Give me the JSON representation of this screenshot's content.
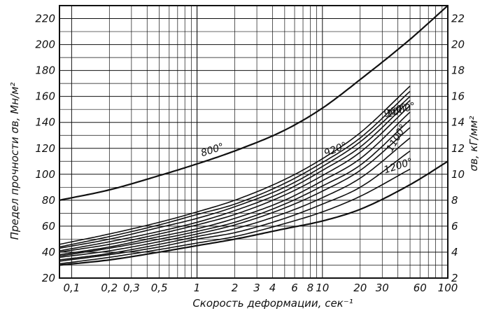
{
  "chart_data": {
    "type": "line",
    "title": "",
    "xlabel": "Скорость деформации, сек⁻¹",
    "ylabel": "Предел прочности σв, Мн/м²",
    "y2label": "σв, кГ/мм²",
    "x_scale": "log",
    "xlim": [
      0.08,
      100
    ],
    "ylim": [
      20,
      230
    ],
    "y2lim": [
      2,
      23
    ],
    "grid": true,
    "x_tick_labels": [
      "0,1",
      "0,2",
      "0,3",
      "0,5",
      "1",
      "2",
      "3",
      "4",
      "6",
      "8",
      "10",
      "20",
      "30",
      "60",
      "100"
    ],
    "x_ticks": [
      0.1,
      0.2,
      0.3,
      0.5,
      1,
      2,
      3,
      4,
      6,
      8,
      10,
      20,
      30,
      60,
      100
    ],
    "y_tick_labels": [
      "20",
      "40",
      "60",
      "80",
      "100",
      "120",
      "140",
      "160",
      "180",
      "200",
      "220"
    ],
    "y_ticks": [
      20,
      40,
      60,
      80,
      100,
      120,
      140,
      160,
      180,
      200,
      220
    ],
    "y2_tick_labels": [
      "2",
      "4",
      "6",
      "8",
      "10",
      "12",
      "14",
      "16",
      "18",
      "20",
      "22"
    ],
    "y2_ticks": [
      2,
      4,
      6,
      8,
      10,
      12,
      14,
      16,
      18,
      20,
      22
    ],
    "series": [
      {
        "name": "800°",
        "x": [
          0.08,
          0.2,
          0.5,
          1,
          2,
          5,
          10,
          20,
          50,
          100
        ],
        "y": [
          80,
          88,
          99,
          108,
          118,
          134,
          151,
          173,
          204,
          230
        ]
      },
      {
        "name": "",
        "x": [
          0.08,
          0.2,
          0.5,
          1,
          2,
          5,
          10,
          20,
          50
        ],
        "y": [
          46,
          54,
          63,
          71,
          80,
          96,
          112,
          132,
          168
        ]
      },
      {
        "name": "",
        "x": [
          0.08,
          0.2,
          0.5,
          1,
          2,
          5,
          10,
          20,
          50
        ],
        "y": [
          44,
          52,
          61,
          69,
          77,
          93,
          109,
          128,
          164
        ]
      },
      {
        "name": "920°",
        "x": [
          0.08,
          0.2,
          0.5,
          1,
          2,
          5,
          10,
          20,
          50
        ],
        "y": [
          43,
          50,
          59,
          66,
          75,
          90,
          106,
          125,
          160
        ]
      },
      {
        "name": "960°",
        "x": [
          0.08,
          0.2,
          0.5,
          1,
          2,
          5,
          10,
          20,
          50
        ],
        "y": [
          41,
          48,
          56,
          63,
          72,
          87,
          103,
          121,
          157
        ]
      },
      {
        "name": "1000°",
        "x": [
          0.08,
          0.2,
          0.5,
          1,
          2,
          5,
          10,
          20,
          50
        ],
        "y": [
          40,
          46,
          54,
          61,
          69,
          84,
          99,
          117,
          153
        ]
      },
      {
        "name": "",
        "x": [
          0.08,
          0.2,
          0.5,
          1,
          2,
          5,
          10,
          20,
          50
        ],
        "y": [
          38,
          44,
          52,
          58,
          66,
          80,
          95,
          112,
          148
        ]
      },
      {
        "name": "",
        "x": [
          0.08,
          0.2,
          0.5,
          1,
          2,
          5,
          10,
          20,
          50
        ],
        "y": [
          37,
          43,
          50,
          56,
          63,
          77,
          91,
          107,
          142
        ]
      },
      {
        "name": "1100°",
        "x": [
          0.08,
          0.2,
          0.5,
          1,
          2,
          5,
          10,
          20,
          50
        ],
        "y": [
          36,
          41,
          48,
          54,
          61,
          74,
          87,
          103,
          136
        ]
      },
      {
        "name": "",
        "x": [
          0.08,
          0.2,
          0.5,
          1,
          2,
          5,
          10,
          20,
          50
        ],
        "y": [
          34,
          39,
          46,
          52,
          58,
          70,
          82,
          97,
          128
        ]
      },
      {
        "name": "",
        "x": [
          0.08,
          0.2,
          0.5,
          1,
          2,
          5,
          10,
          20,
          50
        ],
        "y": [
          33,
          38,
          44,
          50,
          55,
          66,
          77,
          90,
          118
        ]
      },
      {
        "name": "1200°",
        "x": [
          0.08,
          0.2,
          0.5,
          1,
          2,
          5,
          10,
          20,
          50
        ],
        "y": [
          31,
          36,
          42,
          47,
          52,
          62,
          71,
          83,
          104
        ]
      },
      {
        "name": "",
        "x": [
          0.08,
          0.2,
          0.5,
          1,
          2,
          5,
          10,
          20,
          50,
          100
        ],
        "y": [
          30,
          34,
          40,
          45,
          50,
          58,
          64,
          73,
          92,
          110
        ]
      }
    ]
  }
}
